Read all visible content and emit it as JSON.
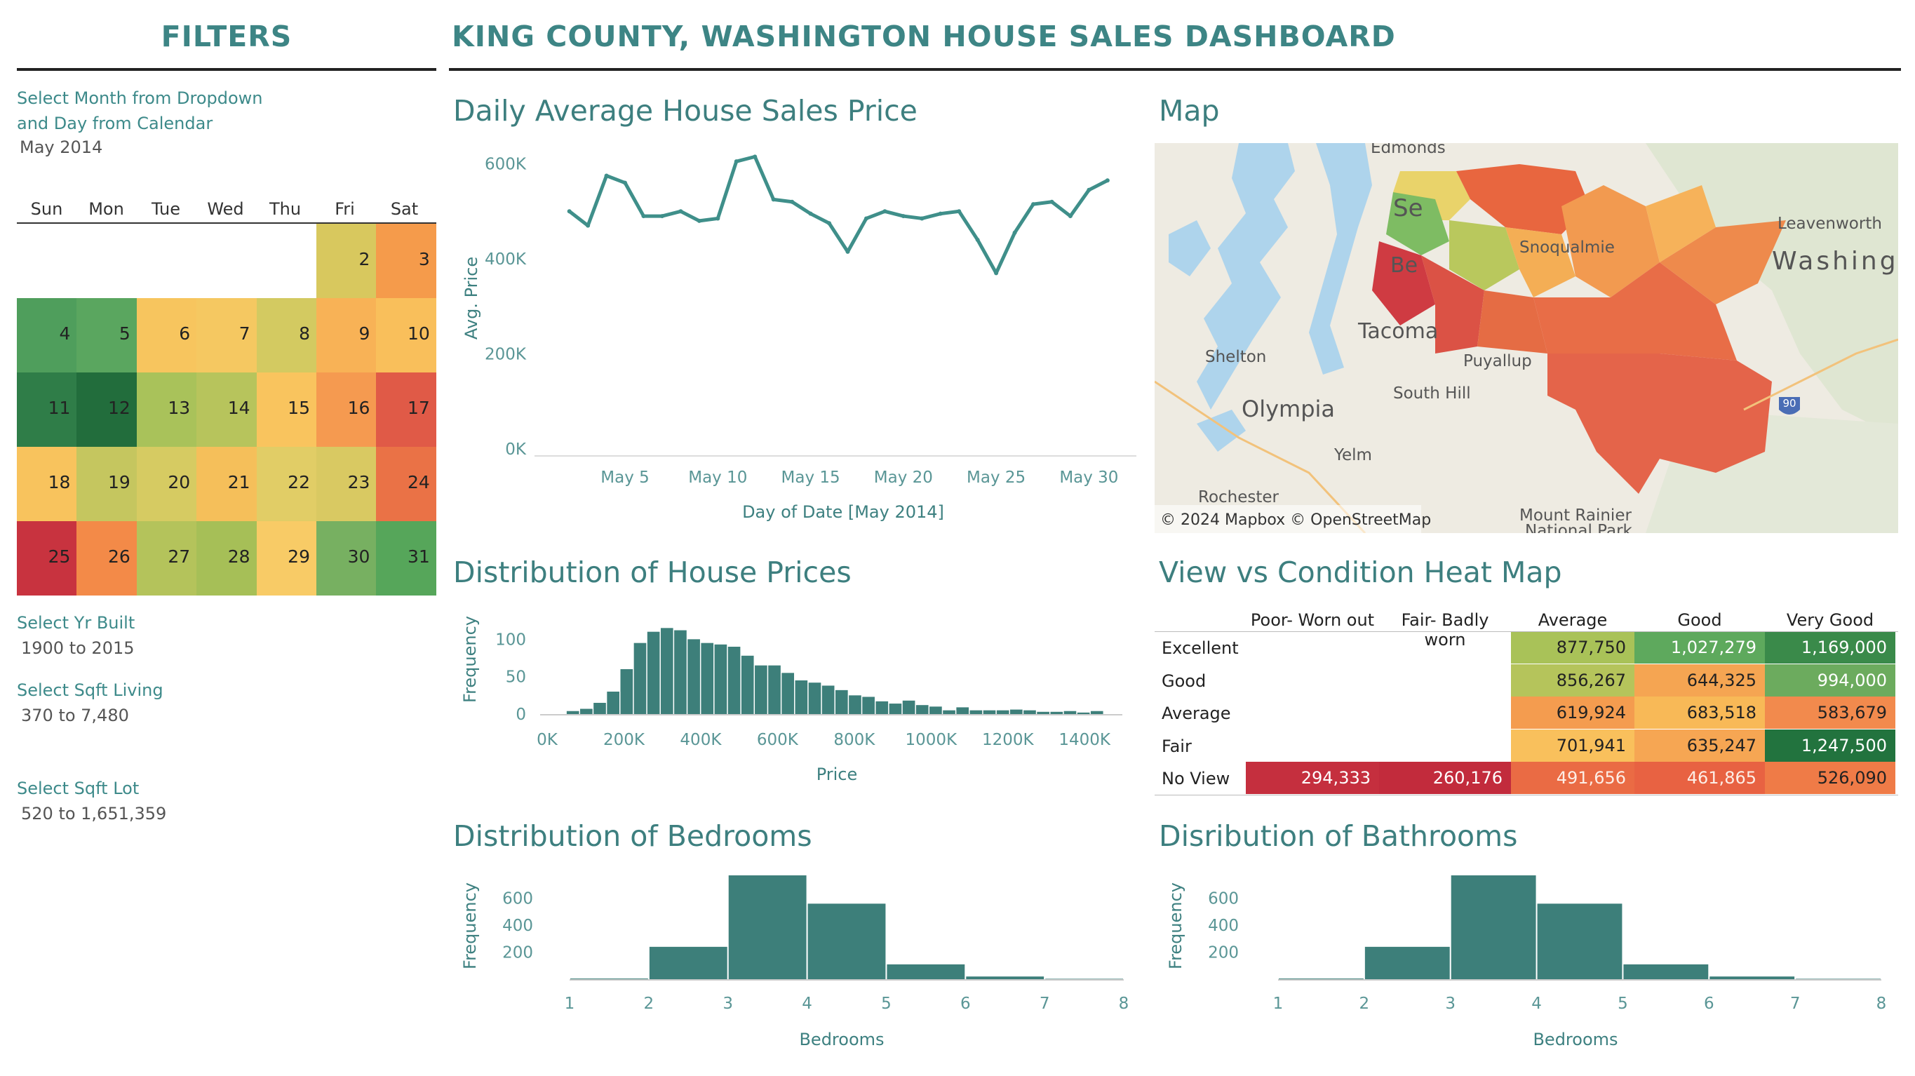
{
  "filters": {
    "title": "FILTERS",
    "month_label_1": "Select Month from Dropdown",
    "month_label_2": "and Day from Calendar",
    "month_value": "May 2014",
    "yr_label": "Select Yr Built",
    "yr_value": "1900 to 2015",
    "sqft_living_label": "Select Sqft Living",
    "sqft_living_value": "370 to 7,480",
    "sqft_lot_label": "Select Sqft Lot",
    "sqft_lot_value": "520 to 1,651,359"
  },
  "calendar": {
    "days": [
      "Sun",
      "Mon",
      "Tue",
      "Wed",
      "Thu",
      "Fri",
      "Sat"
    ],
    "cells": [
      {
        "d": "2",
        "c": "#d8c85e"
      },
      {
        "d": "3",
        "c": "#f59b4b"
      },
      {
        "d": "4",
        "c": "#4f9e5c"
      },
      {
        "d": "5",
        "c": "#5aa65f"
      },
      {
        "d": "6",
        "c": "#f7c55e"
      },
      {
        "d": "7",
        "c": "#f5c861"
      },
      {
        "d": "8",
        "c": "#d3ca61"
      },
      {
        "d": "9",
        "c": "#f8b256"
      },
      {
        "d": "10",
        "c": "#f9bf5b"
      },
      {
        "d": "11",
        "c": "#2f7d48"
      },
      {
        "d": "12",
        "c": "#226d3c"
      },
      {
        "d": "13",
        "c": "#a9c25a"
      },
      {
        "d": "14",
        "c": "#b7c45c"
      },
      {
        "d": "15",
        "c": "#f9c45e"
      },
      {
        "d": "16",
        "c": "#f59a50"
      },
      {
        "d": "17",
        "c": "#e05a47"
      },
      {
        "d": "18",
        "c": "#f8c35d"
      },
      {
        "d": "19",
        "c": "#c5c65f"
      },
      {
        "d": "20",
        "c": "#d6cb62"
      },
      {
        "d": "21",
        "c": "#f5bf5a"
      },
      {
        "d": "22",
        "c": "#e1cd66"
      },
      {
        "d": "23",
        "c": "#d9c962"
      },
      {
        "d": "24",
        "c": "#ea7246"
      },
      {
        "d": "25",
        "c": "#c8333f"
      },
      {
        "d": "26",
        "c": "#f38a48"
      },
      {
        "d": "27",
        "c": "#b4c35b"
      },
      {
        "d": "28",
        "c": "#a6bf57"
      },
      {
        "d": "29",
        "c": "#f8cb66"
      },
      {
        "d": "30",
        "c": "#77b061"
      },
      {
        "d": "31",
        "c": "#56a65a"
      }
    ]
  },
  "header": {
    "title": "KING COUNTY, WASHINGTON HOUSE SALES DASHBOARD"
  },
  "map": {
    "title": "Map",
    "attribution": "© 2024 Mapbox © OpenStreetMap",
    "places": [
      "Edmonds",
      "Se",
      "Leavenworth",
      "Washing",
      "Be",
      "Tacoma",
      "Shelton",
      "Olympia",
      "South Hill",
      "Puyallup",
      "Snoqualmie",
      "Yelm",
      "Rochester",
      "Mount Rainier",
      "National Park",
      "90"
    ]
  },
  "chart_data": [
    {
      "type": "line",
      "title": "Daily Average House Sales Price",
      "xlabel": "Day of Date [May 2014]",
      "ylabel": "Avg. Price",
      "x": [
        2,
        3,
        4,
        5,
        6,
        7,
        8,
        9,
        10,
        11,
        12,
        13,
        14,
        15,
        16,
        17,
        18,
        19,
        20,
        21,
        22,
        23,
        24,
        25,
        26,
        27,
        28,
        29,
        30,
        31
      ],
      "y": [
        500000,
        470000,
        575000,
        560000,
        490000,
        490000,
        500000,
        480000,
        485000,
        605000,
        615000,
        525000,
        520000,
        495000,
        475000,
        415000,
        485000,
        500000,
        490000,
        485000,
        495000,
        500000,
        440000,
        370000,
        455000,
        515000,
        520000,
        490000,
        545000,
        565000
      ],
      "xticks": [
        "May 5",
        "May 10",
        "May 15",
        "May 20",
        "May 25",
        "May 30"
      ],
      "xtick_values": [
        5,
        10,
        15,
        20,
        25,
        30
      ],
      "yticks": [
        "0K",
        "200K",
        "400K",
        "600K"
      ],
      "ylim": [
        0,
        620000
      ]
    },
    {
      "type": "bar",
      "title": "Distribution of House Prices",
      "xlabel": "Price",
      "ylabel": "Frequency",
      "bin_start": 50000,
      "bin_width": 35000,
      "values": [
        4,
        7,
        15,
        30,
        60,
        95,
        110,
        115,
        112,
        100,
        95,
        93,
        90,
        78,
        65,
        65,
        55,
        45,
        42,
        38,
        32,
        25,
        23,
        17,
        14,
        18,
        12,
        10,
        5,
        9,
        5,
        5,
        5,
        6,
        5,
        3,
        3,
        4,
        2,
        4
      ],
      "xticks": [
        "0K",
        "200K",
        "400K",
        "600K",
        "800K",
        "1000K",
        "1200K",
        "1400K"
      ],
      "xtick_values": [
        0,
        200000,
        400000,
        600000,
        800000,
        1000000,
        1200000,
        1400000
      ],
      "yticks": [
        "0",
        "50",
        "100"
      ],
      "ylim": [
        0,
        120
      ]
    },
    {
      "type": "bar",
      "title": "Distribution of  Bedrooms",
      "xlabel": "Bedrooms",
      "ylabel": "Frequency",
      "bins": [
        [
          1,
          2
        ],
        [
          2,
          3
        ],
        [
          3,
          4
        ],
        [
          4,
          5
        ],
        [
          5,
          6
        ],
        [
          6,
          7
        ],
        [
          7,
          8
        ]
      ],
      "values": [
        5,
        240,
        770,
        560,
        110,
        20,
        3
      ],
      "xticks": [
        "1",
        "2",
        "3",
        "4",
        "5",
        "6",
        "7",
        "8"
      ],
      "yticks": [
        "200",
        "400",
        "600"
      ],
      "ylim": [
        0,
        780
      ]
    },
    {
      "type": "bar",
      "title": "Disribution of Bathrooms",
      "xlabel": "Bedrooms",
      "ylabel": "Frequency",
      "bins": [
        [
          1,
          2
        ],
        [
          2,
          3
        ],
        [
          3,
          4
        ],
        [
          4,
          5
        ],
        [
          5,
          6
        ],
        [
          6,
          7
        ],
        [
          7,
          8
        ]
      ],
      "values": [
        5,
        240,
        770,
        560,
        110,
        20,
        3
      ],
      "xticks": [
        "1",
        "2",
        "3",
        "4",
        "5",
        "6",
        "7",
        "8"
      ],
      "yticks": [
        "200",
        "400",
        "600"
      ],
      "ylim": [
        0,
        780
      ]
    },
    {
      "type": "heatmap",
      "title": "View vs Condition Heat Map",
      "columns": [
        "Poor- Worn out",
        "Fair- Badly worn",
        "Average",
        "Good",
        "Very Good"
      ],
      "rows": [
        {
          "label": "Excellent",
          "cells": [
            {
              "v": "",
              "c": ""
            },
            {
              "v": "",
              "c": ""
            },
            {
              "v": "877,750",
              "c": "#a9c258"
            },
            {
              "v": "1,027,279",
              "c": "#5ea95d"
            },
            {
              "v": "1,169,000",
              "c": "#3a8a4a"
            }
          ]
        },
        {
          "label": "Good",
          "cells": [
            {
              "v": "",
              "c": ""
            },
            {
              "v": "",
              "c": ""
            },
            {
              "v": "856,267",
              "c": "#b5c45b"
            },
            {
              "v": "644,325",
              "c": "#f5a552"
            },
            {
              "v": "994,000",
              "c": "#6cab5e"
            }
          ]
        },
        {
          "label": "Average",
          "cells": [
            {
              "v": "",
              "c": ""
            },
            {
              "v": "",
              "c": ""
            },
            {
              "v": "619,924",
              "c": "#f49c4f"
            },
            {
              "v": "683,518",
              "c": "#f8b957"
            },
            {
              "v": "583,679",
              "c": "#f28a4d"
            }
          ]
        },
        {
          "label": "Fair",
          "cells": [
            {
              "v": "",
              "c": ""
            },
            {
              "v": "",
              "c": ""
            },
            {
              "v": "701,941",
              "c": "#f9c05c"
            },
            {
              "v": "635,247",
              "c": "#f6a653"
            },
            {
              "v": "1,247,500",
              "c": "#22733e"
            }
          ]
        },
        {
          "label": "No View",
          "cells": [
            {
              "v": "294,333",
              "c": "#c52f3e"
            },
            {
              "v": "260,176",
              "c": "#c22b3c"
            },
            {
              "v": "491,656",
              "c": "#ea6b44"
            },
            {
              "v": "461,865",
              "c": "#e86242"
            },
            {
              "v": "526,090",
              "c": "#ef7b47"
            }
          ]
        }
      ]
    }
  ]
}
